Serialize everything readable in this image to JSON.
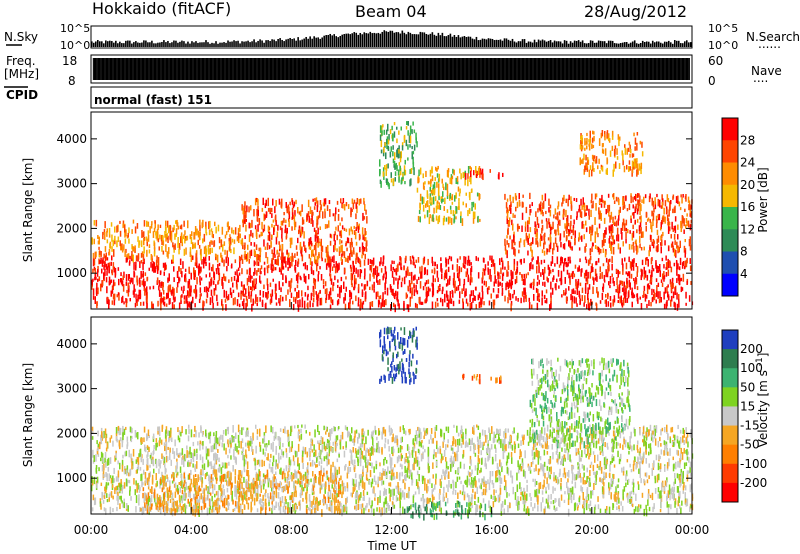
{
  "header": {
    "station": "Hokkaido (fitACF)",
    "beam": "Beam 04",
    "date": "28/Aug/2012"
  },
  "strip_labels": {
    "nsky": "N.Sky",
    "nsearch": "N.Search",
    "freq_line1": "Freq.",
    "freq_line2": "[MHz]",
    "nave": "Nave",
    "cpid": "CPID",
    "dots": "......",
    "dots_short": "...."
  },
  "strip_ticks": {
    "noise_top": "10^5",
    "noise_bottom": "10^0",
    "freq_top": "18",
    "freq_bottom": "8",
    "nave_top": "60",
    "nave_bottom": "0"
  },
  "cpid_text": "normal (fast) 151",
  "chart_data": [
    {
      "type": "heatmap",
      "panel": "power",
      "xlabel": "",
      "ylabel": "Slant Range [km]",
      "x_range_ut_hours": [
        0,
        24
      ],
      "ylim": [
        200,
        4600
      ],
      "yticks": [
        1000,
        2000,
        3000,
        4000
      ],
      "grid": false,
      "colorbar": {
        "label": "Power [dB]",
        "ticks": [
          4,
          8,
          12,
          16,
          20,
          24,
          28
        ],
        "colors": [
          "#0000ff",
          "#1f4fb0",
          "#2e8b57",
          "#39b54a",
          "#f5b800",
          "#ff8c00",
          "#ff4500",
          "#ff0000"
        ]
      },
      "bands": [
        {
          "t0": 0.0,
          "t1": 24.0,
          "r0": 300,
          "r1": 1400,
          "level": 7
        },
        {
          "t0": 0.0,
          "t1": 6.0,
          "r0": 1400,
          "r1": 2200,
          "level": 5
        },
        {
          "t0": 6.0,
          "t1": 11.0,
          "r0": 1300,
          "r1": 2700,
          "level": 6
        },
        {
          "t0": 11.5,
          "t1": 13.0,
          "r0": 3000,
          "r1": 4400,
          "level": 3
        },
        {
          "t0": 13.0,
          "t1": 15.5,
          "r0": 2200,
          "r1": 3400,
          "level": 4
        },
        {
          "t0": 14.8,
          "t1": 16.5,
          "r0": 3200,
          "r1": 3350,
          "level": 7
        },
        {
          "t0": 16.5,
          "t1": 24.0,
          "r0": 1500,
          "r1": 2800,
          "level": 6
        },
        {
          "t0": 19.5,
          "t1": 22.0,
          "r0": 3300,
          "r1": 4200,
          "level": 5
        }
      ]
    },
    {
      "type": "heatmap",
      "panel": "velocity",
      "xlabel": "Time UT",
      "ylabel": "Slant Range [km]",
      "x_range_ut_hours": [
        0,
        24
      ],
      "xticks": [
        "00:00",
        "04:00",
        "08:00",
        "12:00",
        "16:00",
        "20:00",
        "00:00"
      ],
      "ylim": [
        200,
        4600
      ],
      "yticks": [
        1000,
        2000,
        3000,
        4000
      ],
      "grid": false,
      "colorbar": {
        "label": "Velocity [m s^-1]",
        "ticks": [
          200,
          100,
          50,
          15,
          -15,
          -50,
          -100,
          -200
        ],
        "colors": [
          "#1f3fbf",
          "#2e7d4f",
          "#3cb371",
          "#7ed321",
          "#c8c8c8",
          "#f5a623",
          "#ff7f00",
          "#ff3b00",
          "#ff0000"
        ]
      },
      "bands": [
        {
          "t0": 0.0,
          "t1": 24.0,
          "r0": 300,
          "r1": 2200,
          "level": 4
        },
        {
          "t0": 2.0,
          "t1": 10.0,
          "r0": 300,
          "r1": 1200,
          "level": 5
        },
        {
          "t0": 12.5,
          "t1": 16.0,
          "r0": 200,
          "r1": 500,
          "level": 2
        },
        {
          "t0": 14.8,
          "t1": 16.5,
          "r0": 3200,
          "r1": 3350,
          "level": 6
        },
        {
          "t0": 17.5,
          "t1": 21.5,
          "r0": 1800,
          "r1": 3700,
          "level": 3
        },
        {
          "t0": 11.5,
          "t1": 13.0,
          "r0": 3200,
          "r1": 4400,
          "level": 0
        }
      ]
    }
  ]
}
